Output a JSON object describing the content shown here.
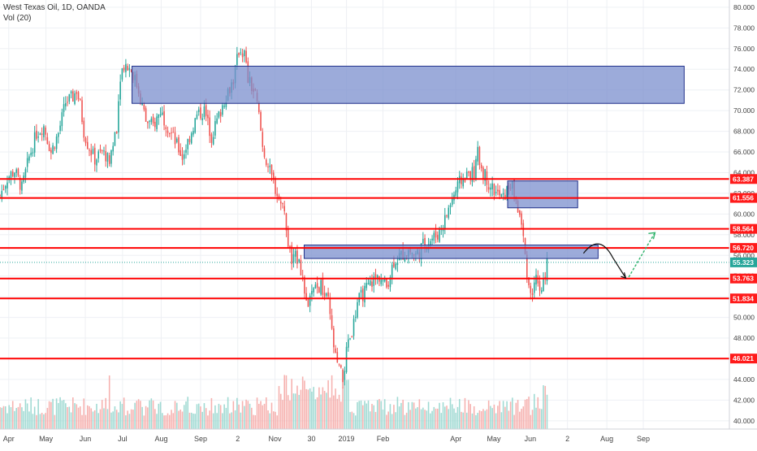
{
  "header": {
    "symbol_line": "West Texas Oil, 1D, OANDA",
    "volume_line": "Vol (20)"
  },
  "colors": {
    "up": "#26a69a",
    "down": "#ef5350",
    "vol_up": "#8fd3cb",
    "vol_down": "#f5a3a1",
    "zone_fill": "#7b8fce",
    "zone_stroke": "#1f2f8a",
    "level_line": "#ff0000",
    "label_bg": "#ff1a1a",
    "current_bg": "#26a69a",
    "grid": "#eef0f4",
    "axis_text": "#444444",
    "arrow_black": "#111111",
    "arrow_green": "#2fb36b"
  },
  "chart_data": {
    "type": "candlestick",
    "title": "West Texas Oil, 1D, OANDA",
    "xlabel": "",
    "ylabel": "",
    "ylim": [
      39.2,
      80.7
    ],
    "grid": true,
    "y_ticks": [
      40,
      42,
      44,
      46,
      48,
      50,
      52,
      54,
      56,
      58,
      60,
      62,
      64,
      66,
      68,
      70,
      72,
      74,
      76,
      78,
      80
    ],
    "x_ticks": [
      {
        "label": "Apr",
        "t": 0.012
      },
      {
        "label": "May",
        "t": 0.063
      },
      {
        "label": "Jun",
        "t": 0.117
      },
      {
        "label": "Jul",
        "t": 0.168
      },
      {
        "label": "Aug",
        "t": 0.221
      },
      {
        "label": "Sep",
        "t": 0.275
      },
      {
        "label": "2",
        "t": 0.326
      },
      {
        "label": "Nov",
        "t": 0.377
      },
      {
        "label": "30",
        "t": 0.427
      },
      {
        "label": "2019",
        "t": 0.475
      },
      {
        "label": "Feb",
        "t": 0.525
      },
      {
        "label": "Apr",
        "t": 0.625
      },
      {
        "label": "May",
        "t": 0.677
      },
      {
        "label": "Jun",
        "t": 0.727
      },
      {
        "label": "2",
        "t": 0.778
      },
      {
        "label": "Aug",
        "t": 0.832
      },
      {
        "label": "Sep",
        "t": 0.882
      }
    ],
    "price_path": [
      [
        0.0,
        61.8
      ],
      [
        0.01,
        63.5
      ],
      [
        0.02,
        64.2
      ],
      [
        0.03,
        62.5
      ],
      [
        0.04,
        65.5
      ],
      [
        0.05,
        67.8
      ],
      [
        0.06,
        68.5
      ],
      [
        0.07,
        66.0
      ],
      [
        0.08,
        67.8
      ],
      [
        0.09,
        70.8
      ],
      [
        0.1,
        71.3
      ],
      [
        0.105,
        72.0
      ],
      [
        0.11,
        70.5
      ],
      [
        0.115,
        68.0
      ],
      [
        0.12,
        66.8
      ],
      [
        0.13,
        65.3
      ],
      [
        0.14,
        66.0
      ],
      [
        0.15,
        65.2
      ],
      [
        0.16,
        68.5
      ],
      [
        0.165,
        73.5
      ],
      [
        0.17,
        74.5
      ],
      [
        0.18,
        74.0
      ],
      [
        0.19,
        72.0
      ],
      [
        0.2,
        69.0
      ],
      [
        0.21,
        68.5
      ],
      [
        0.22,
        70.0
      ],
      [
        0.23,
        68.5
      ],
      [
        0.24,
        67.0
      ],
      [
        0.25,
        65.5
      ],
      [
        0.26,
        67.5
      ],
      [
        0.27,
        69.5
      ],
      [
        0.28,
        70.0
      ],
      [
        0.29,
        67.5
      ],
      [
        0.3,
        69.5
      ],
      [
        0.31,
        71.5
      ],
      [
        0.32,
        73.0
      ],
      [
        0.328,
        76.0
      ],
      [
        0.335,
        75.5
      ],
      [
        0.34,
        73.0
      ],
      [
        0.35,
        71.5
      ],
      [
        0.355,
        69.5
      ],
      [
        0.36,
        66.5
      ],
      [
        0.37,
        64.0
      ],
      [
        0.38,
        62.0
      ],
      [
        0.39,
        60.0
      ],
      [
        0.395,
        57.0
      ],
      [
        0.4,
        55.5
      ],
      [
        0.41,
        56.0
      ],
      [
        0.415,
        53.5
      ],
      [
        0.42,
        51.0
      ],
      [
        0.43,
        52.5
      ],
      [
        0.44,
        53.0
      ],
      [
        0.445,
        52.0
      ],
      [
        0.45,
        51.5
      ],
      [
        0.455,
        48.5
      ],
      [
        0.46,
        46.0
      ],
      [
        0.465,
        45.0
      ],
      [
        0.47,
        44.0
      ],
      [
        0.475,
        46.5
      ],
      [
        0.48,
        48.0
      ],
      [
        0.485,
        49.5
      ],
      [
        0.49,
        51.5
      ],
      [
        0.5,
        52.5
      ],
      [
        0.51,
        53.5
      ],
      [
        0.52,
        54.0
      ],
      [
        0.53,
        53.0
      ],
      [
        0.54,
        55.5
      ],
      [
        0.55,
        56.0
      ],
      [
        0.56,
        56.5
      ],
      [
        0.57,
        56.0
      ],
      [
        0.58,
        57.0
      ],
      [
        0.59,
        57.5
      ],
      [
        0.6,
        58.0
      ],
      [
        0.61,
        59.5
      ],
      [
        0.62,
        61.5
      ],
      [
        0.63,
        63.0
      ],
      [
        0.64,
        63.8
      ],
      [
        0.65,
        64.0
      ],
      [
        0.655,
        65.8
      ],
      [
        0.66,
        64.5
      ],
      [
        0.67,
        63.0
      ],
      [
        0.68,
        62.0
      ],
      [
        0.69,
        61.5
      ],
      [
        0.7,
        63.0
      ],
      [
        0.705,
        62.0
      ],
      [
        0.71,
        60.5
      ],
      [
        0.715,
        59.0
      ],
      [
        0.72,
        56.0
      ],
      [
        0.725,
        53.0
      ],
      [
        0.73,
        52.5
      ],
      [
        0.735,
        53.5
      ],
      [
        0.74,
        52.0
      ],
      [
        0.745,
        53.5
      ],
      [
        0.75,
        55.3
      ]
    ],
    "volume_scale_top": 0.62,
    "zones": [
      {
        "name": "upper-resistance-zone",
        "t0": 0.181,
        "t1": 0.938,
        "y0": 70.7,
        "y1": 74.3
      },
      {
        "name": "mid-supply-zone",
        "t0": 0.696,
        "t1": 0.792,
        "y0": 60.6,
        "y1": 63.2
      },
      {
        "name": "pivot-zone",
        "t0": 0.417,
        "t1": 0.82,
        "y0": 55.7,
        "y1": 57.0
      }
    ],
    "levels": [
      {
        "value": 63.387,
        "label": "63.387"
      },
      {
        "value": 61.556,
        "label": "61.556"
      },
      {
        "value": 58.564,
        "label": "58.564"
      },
      {
        "value": 56.72,
        "label": "56.720"
      },
      {
        "value": 53.763,
        "label": "53.763"
      },
      {
        "value": 51.834,
        "label": "51.834"
      },
      {
        "value": 46.021,
        "label": "46.021"
      }
    ],
    "current_price": {
      "value": 55.323,
      "label": "55.323"
    },
    "projection": {
      "curve": [
        [
          0.8,
          56.2
        ],
        [
          0.822,
          57.0
        ],
        [
          0.84,
          55.8
        ],
        [
          0.85,
          54.2
        ],
        [
          0.858,
          53.8
        ]
      ],
      "arrow": [
        [
          0.862,
          53.9
        ],
        [
          0.898,
          58.2
        ]
      ]
    }
  }
}
